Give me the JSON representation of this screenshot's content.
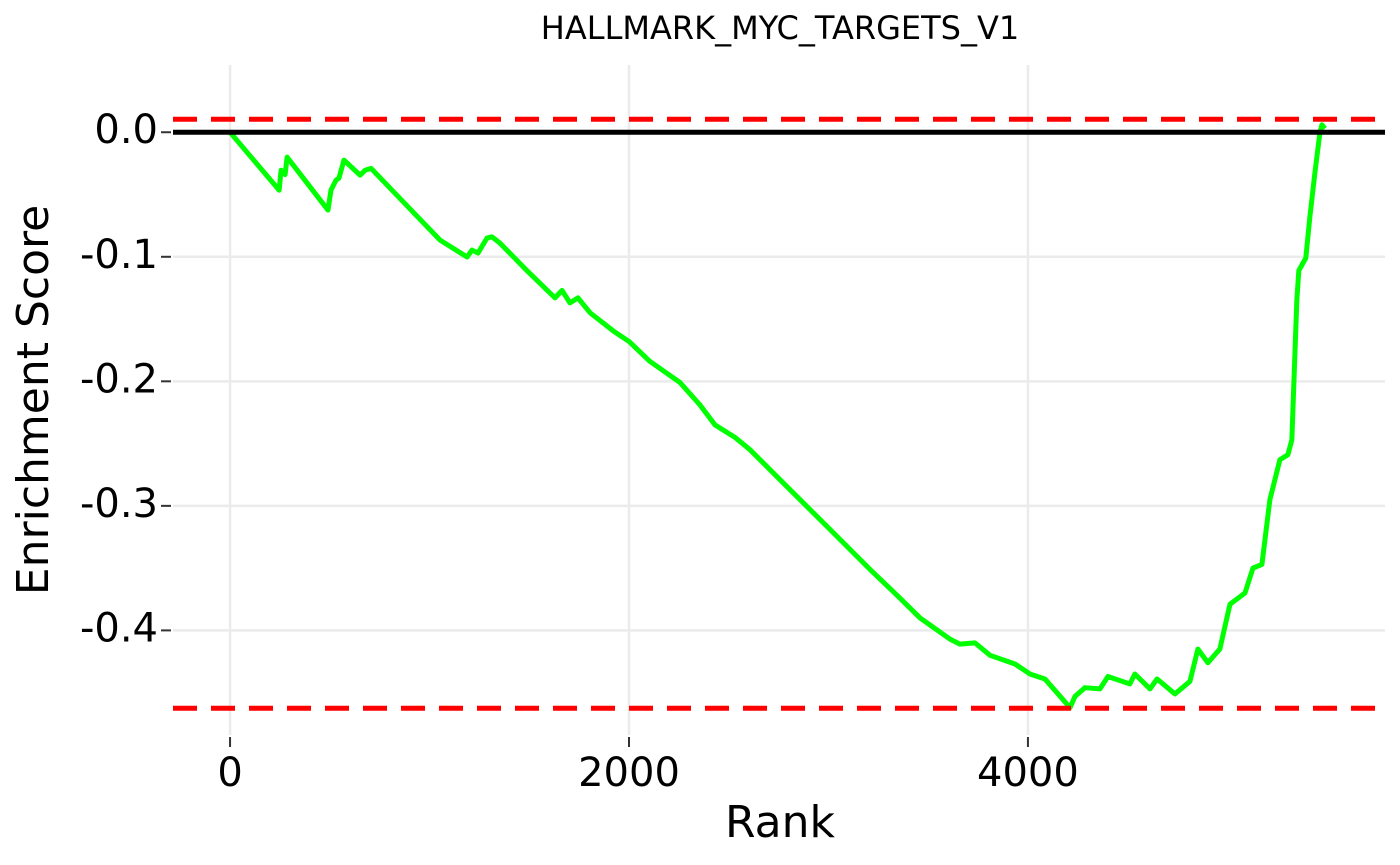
{
  "chart_data": {
    "type": "line",
    "title": "HALLMARK_MYC_TARGETS_V1",
    "x_label": "Rank",
    "y_label": "Enrichment Score",
    "xlim": [
      -286,
      5790
    ],
    "ylim": [
      -0.484,
      0.054
    ],
    "xticks": [
      0,
      2000,
      4000
    ],
    "yticks": [
      {
        "value": 0,
        "label": "0.0"
      },
      -0.1,
      -0.2,
      -0.3,
      -0.4
    ],
    "grid": true,
    "reference_lines": [
      {
        "value": 0,
        "color": "#000000",
        "dashed": false
      },
      {
        "value": 0.0104,
        "color": "#ff0000",
        "dashed": true
      },
      {
        "value": -0.4625,
        "color": "#ff0000",
        "dashed": true
      }
    ],
    "series": [
      {
        "color": "#00ff00",
        "x": [
          0,
          246,
          256,
          276,
          286,
          491,
          506,
          531,
          546,
          571,
          652,
          677,
          707,
          927,
          1053,
          1188,
          1213,
          1243,
          1288,
          1313,
          1353,
          1494,
          1629,
          1664,
          1704,
          1744,
          1805,
          1925,
          2000,
          2105,
          2256,
          2356,
          2431,
          2531,
          2607,
          2757,
          3008,
          3208,
          3358,
          3459,
          3609,
          3659,
          3734,
          3810,
          3935,
          4010,
          4085,
          4211,
          4236,
          4286,
          4361,
          4401,
          4511,
          4536,
          4612,
          4647,
          4737,
          4812,
          4852,
          4902,
          4962,
          5013,
          5088,
          5128,
          5173,
          5213,
          5263,
          5303,
          5323,
          5348,
          5358,
          5393,
          5414,
          5439,
          5464,
          5474,
          5489
        ],
        "values": [
          0,
          -0.0465,
          -0.0305,
          -0.034,
          -0.02,
          -0.0625,
          -0.0465,
          -0.0385,
          -0.0369,
          -0.0224,
          -0.0345,
          -0.0305,
          -0.029,
          -0.0657,
          -0.0866,
          -0.1002,
          -0.0946,
          -0.097,
          -0.085,
          -0.084,
          -0.089,
          -0.112,
          -0.133,
          -0.127,
          -0.137,
          -0.133,
          -0.145,
          -0.16,
          -0.168,
          -0.184,
          -0.201,
          -0.219,
          -0.235,
          -0.245,
          -0.255,
          -0.279,
          -0.319,
          -0.351,
          -0.374,
          -0.39,
          -0.407,
          -0.411,
          -0.41,
          -0.42,
          -0.427,
          -0.435,
          -0.439,
          -0.462,
          -0.453,
          -0.446,
          -0.447,
          -0.437,
          -0.443,
          -0.435,
          -0.447,
          -0.439,
          -0.451,
          -0.441,
          -0.415,
          -0.426,
          -0.415,
          -0.379,
          -0.37,
          -0.35,
          -0.347,
          -0.295,
          -0.263,
          -0.259,
          -0.247,
          -0.135,
          -0.111,
          -0.101,
          -0.067,
          -0.032,
          0,
          0.006,
          0.003
        ]
      }
    ]
  }
}
